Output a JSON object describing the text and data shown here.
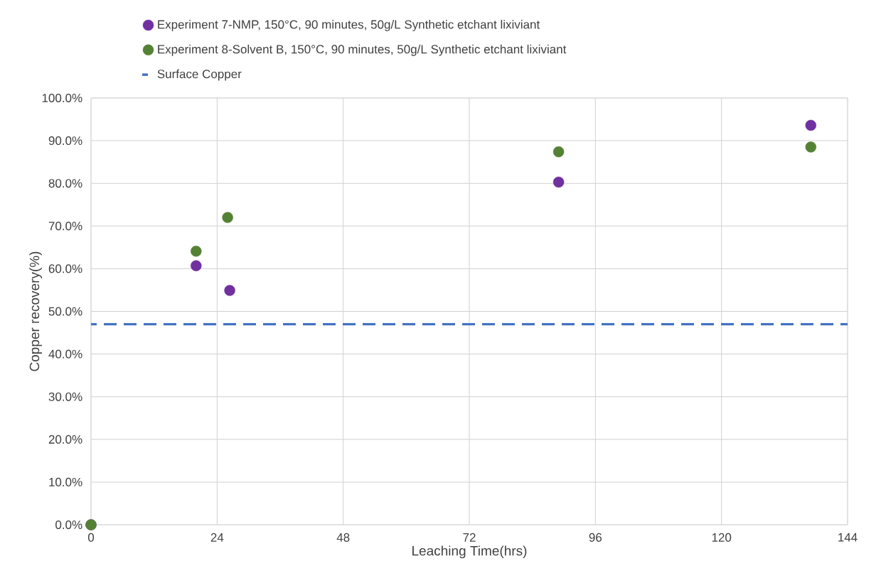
{
  "chart_data": {
    "type": "scatter",
    "xlabel": "Leaching Time(hrs)",
    "ylabel": "Copper recovery(%)",
    "series": [
      {
        "name": "Experiment 7-NMP, 150°C, 90 minutes, 50g/L Synthetic etchant lixiviant",
        "color": "#7030a0",
        "x": [
          0,
          20,
          26.4,
          89,
          137
        ],
        "values": [
          0,
          60.7,
          54.9,
          80.3,
          93.6
        ]
      },
      {
        "name": "Experiment 8-Solvent B, 150°C, 90 minutes, 50g/L Synthetic etchant lixiviant",
        "color": "#548235",
        "x": [
          0,
          20,
          26,
          89,
          137
        ],
        "values": [
          0,
          64.1,
          72.0,
          87.4,
          88.5
        ]
      },
      {
        "name": "Surface Copper",
        "type": "line",
        "color": "#4472c4",
        "line_style": "dashed",
        "marker": "none",
        "x": [
          0,
          144
        ],
        "values": [
          47,
          47
        ]
      }
    ],
    "xlim": [
      0,
      144
    ],
    "xticks": [
      0,
      24,
      48,
      72,
      96,
      120,
      144
    ],
    "ylim": [
      0,
      100
    ],
    "yticks": [
      {
        "value": 0,
        "label": "0.0%"
      },
      {
        "value": 10,
        "label": "10.0%"
      },
      {
        "value": 20,
        "label": "20.0%"
      },
      {
        "value": 30,
        "label": "30.0%"
      },
      {
        "value": 40,
        "label": "40.0%"
      },
      {
        "value": 50,
        "label": "50.0%"
      },
      {
        "value": 60,
        "label": "60.0%"
      },
      {
        "value": 70,
        "label": "70.0%"
      },
      {
        "value": 80,
        "label": "80.0%"
      },
      {
        "value": 90,
        "label": "90.0%"
      },
      {
        "value": 100,
        "label": "100.0%"
      }
    ],
    "grid": true,
    "legend": "top",
    "marker": "circle"
  }
}
